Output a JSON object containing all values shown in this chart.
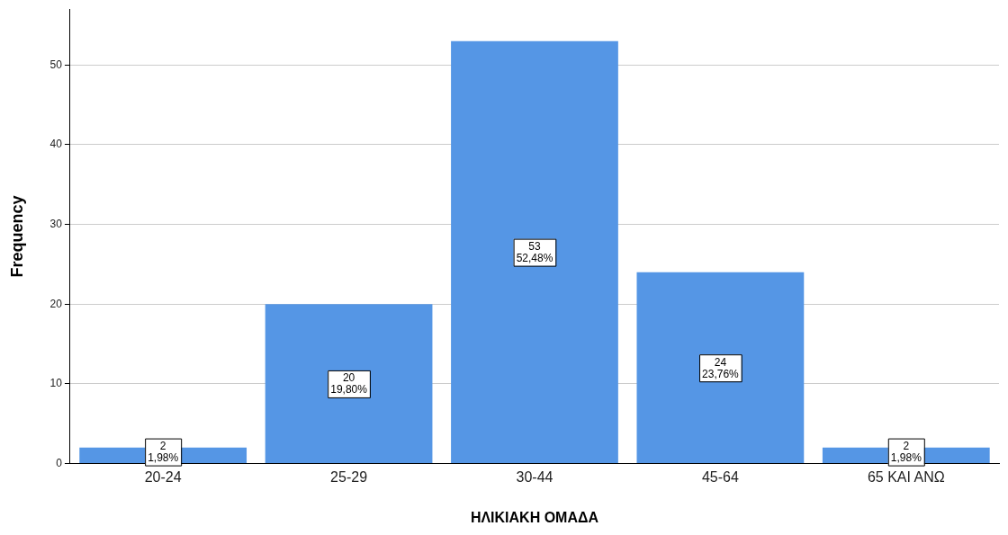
{
  "chart_data": {
    "type": "bar",
    "xlabel": "ΗΛΙΚΙΑΚΗ ΟΜΑΔΑ",
    "ylabel": "Frequency",
    "categories": [
      "20-24",
      "25-29",
      "30-44",
      "45-64",
      "65 ΚΑΙ ΑΝΩ"
    ],
    "values": [
      2,
      20,
      53,
      24,
      2
    ],
    "value_labels": [
      "2\n1,98%",
      "20\n19,80%",
      "53\n52,48%",
      "24\n23,76%",
      "2\n1,98%"
    ],
    "color": "#5596e5",
    "ylim": [
      0,
      57
    ],
    "yticks": [
      0,
      10,
      20,
      30,
      40,
      50
    ],
    "grid": "y",
    "legend": false
  }
}
